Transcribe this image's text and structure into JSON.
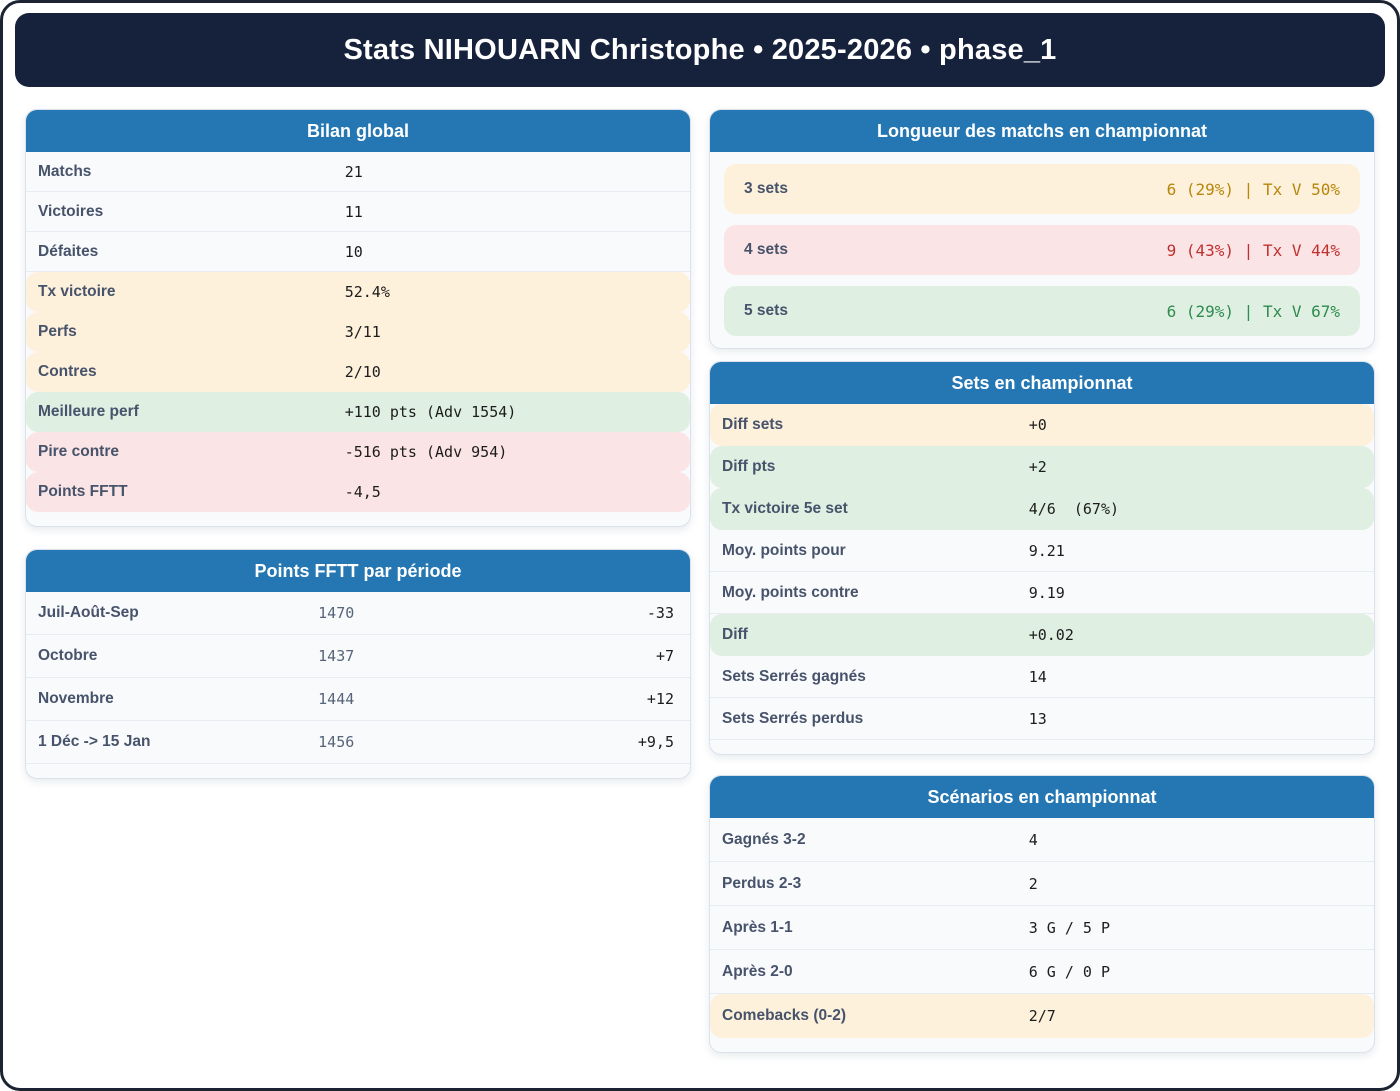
{
  "header": {
    "title": "Stats NIHOUARN Christophe • 2025-2026 • phase_1"
  },
  "colors": {
    "page_border": "#1c2433",
    "titlebar_bg": "#16213B",
    "card_header_bg": "#2577B3",
    "tone_warn_bg": "#fdf1dc",
    "tone_good_bg": "#dff0e3",
    "tone_bad_bg": "#fbe4e5",
    "warn_text": "#B8860B",
    "bad_text": "#C03030",
    "good_text": "#2F8B4E"
  },
  "cards": {
    "bilan": {
      "title": "Bilan global",
      "rows": [
        {
          "label": "Matchs",
          "value": "21",
          "tone": "plain"
        },
        {
          "label": "Victoires",
          "value": "11",
          "tone": "plain"
        },
        {
          "label": "Défaites",
          "value": "10",
          "tone": "plain"
        },
        {
          "label": "Tx victoire",
          "value": "52.4%",
          "tone": "warn"
        },
        {
          "label": "Perfs",
          "value": "3/11",
          "tone": "warn"
        },
        {
          "label": "Contres",
          "value": "2/10",
          "tone": "warn"
        },
        {
          "label": "Meilleure perf",
          "value": "+110 pts (Adv 1554)",
          "tone": "good"
        },
        {
          "label": "Pire contre",
          "value": "-516 pts (Adv 954)",
          "tone": "bad"
        },
        {
          "label": "Points FFTT",
          "value": "-4,5",
          "tone": "bad"
        }
      ]
    },
    "periodes": {
      "title": "Points FFTT par période",
      "rows": [
        {
          "label": "Juil-Août-Sep",
          "value": "1470",
          "delta": "-33",
          "tone": "plain"
        },
        {
          "label": "Octobre",
          "value": "1437",
          "delta": "+7",
          "tone": "plain"
        },
        {
          "label": "Novembre",
          "value": "1444",
          "delta": "+12",
          "tone": "plain"
        },
        {
          "label": "1 Déc -> 15 Jan",
          "value": "1456",
          "delta": "+9,5",
          "tone": "plain"
        }
      ]
    },
    "longueur": {
      "title": "Longueur des matchs en championnat",
      "rows": [
        {
          "label": "3 sets",
          "value": "6 (29%) | Tx V 50%",
          "tone": "warn"
        },
        {
          "label": "4 sets",
          "value": "9 (43%) | Tx V 44%",
          "tone": "bad"
        },
        {
          "label": "5 sets",
          "value": "6 (29%) | Tx V 67%",
          "tone": "good"
        }
      ]
    },
    "sets": {
      "title": "Sets en championnat",
      "rows": [
        {
          "label": "Diff sets",
          "value": "+0",
          "tone": "warn"
        },
        {
          "label": "Diff pts",
          "value": "+2",
          "tone": "good"
        },
        {
          "label": "Tx victoire 5e set",
          "value": "4/6  (67%)",
          "tone": "good"
        },
        {
          "label": "Moy. points pour",
          "value": "9.21",
          "tone": "plain"
        },
        {
          "label": "Moy. points contre",
          "value": "9.19",
          "tone": "plain"
        },
        {
          "label": "Diff",
          "value": "+0.02",
          "tone": "good"
        },
        {
          "label": "Sets Serrés gagnés",
          "value": "14",
          "tone": "plain"
        },
        {
          "label": "Sets Serrés perdus",
          "value": "13",
          "tone": "plain"
        }
      ]
    },
    "scenarios": {
      "title": "Scénarios en championnat",
      "rows": [
        {
          "label": "Gagnés 3-2",
          "value": "4",
          "tone": "plain"
        },
        {
          "label": "Perdus 2-3",
          "value": "2",
          "tone": "plain"
        },
        {
          "label": "Après 1-1",
          "value": "3 G / 5 P",
          "tone": "plain"
        },
        {
          "label": "Après 2-0",
          "value": "6 G / 0 P",
          "tone": "plain"
        },
        {
          "label": "Comebacks (0-2)",
          "value": "2/7",
          "tone": "warn"
        }
      ]
    }
  }
}
